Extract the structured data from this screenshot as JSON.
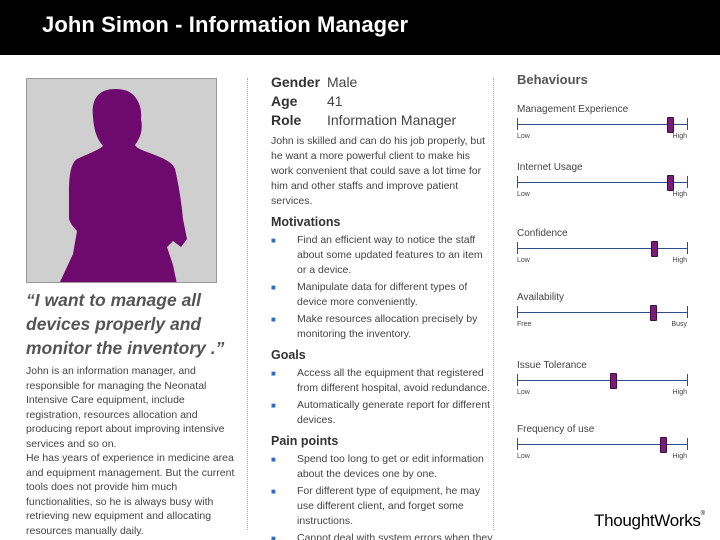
{
  "header": {
    "title": "John Simon - Information Manager"
  },
  "persona": {
    "quote": "“I want to manage all devices properly and monitor the inventory .”",
    "bio": [
      "John is an information manager, and responsible for managing the Neonatal Intensive Care equipment, include registration, resources allocation and producing report about improving intensive services and so on.",
      "He has years of experience in medicine area and equipment management. But the current tools does not provide him much functionalities, so he is always busy with retrieving new equipment and allocating resources manually daily."
    ]
  },
  "details": {
    "gender_label": "Gender",
    "gender_value": "Male",
    "age_label": "Age",
    "age_value": "41",
    "role_label": "Role",
    "role_value": "Information Manager",
    "description": "John is skilled and can do his job properly, but he want a more powerful client to make his work convenient that could save a lot time for him and other staffs and improve patient services."
  },
  "motivations": {
    "title": "Motivations",
    "items": [
      "Find an efficient way to notice the staff about some updated features to an item or a device.",
      "Manipulate data for different types of device more conveniently.",
      "Make resources allocation precisely by monitoring the inventory."
    ]
  },
  "goals": {
    "title": "Goals",
    "items": [
      "Access all the equipment that registered from different hospital, avoid redundance.",
      "Automatically generate report for different devices."
    ]
  },
  "pain_points": {
    "title": "Pain points",
    "items": [
      "Spend too long to get or edit information about the devices one by one.",
      "For different type of equipment, he may use different client, and forget some instructions.",
      "Cannot deal with system errors when they are thrown."
    ]
  },
  "behaviours": {
    "title": "Behaviours",
    "items": [
      {
        "label": "Management Experience",
        "min": "Low",
        "max": "High",
        "level": 0.9
      },
      {
        "label": "Internet Usage",
        "min": "Low",
        "max": "High",
        "level": 0.9
      },
      {
        "label": "Confidence",
        "min": "Low",
        "max": "High",
        "level": 0.81
      },
      {
        "label": "Availability",
        "min": "Free",
        "max": "Busy",
        "level": 0.8
      },
      {
        "label": "Issue Tolerance",
        "min": "Low",
        "max": "High",
        "level": 0.57
      },
      {
        "label": "Frequency of use",
        "min": "Low",
        "max": "High",
        "level": 0.86
      }
    ]
  },
  "brand": {
    "logo": "ThoughtWorks",
    "mark": "®"
  },
  "colors": {
    "header_bg": "#000000",
    "silhouette": "#6e0a6e",
    "thumb": "#7b1b7a",
    "bullet": "#2e6fbf"
  }
}
